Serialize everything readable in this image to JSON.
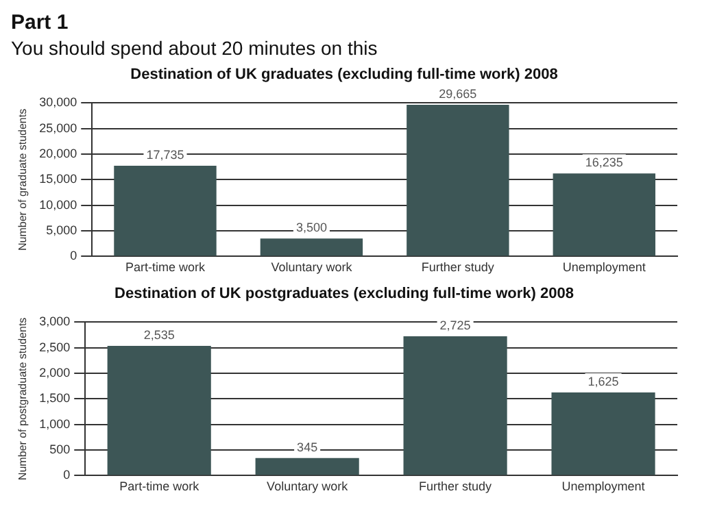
{
  "chart_data": [
    {
      "type": "bar",
      "title": "Destination of UK graduates (excluding full-time work) 2008",
      "annotations": [
        "Part 1",
        "You should spend about 20 minutes on this"
      ],
      "ylabel": "Number of graduate students",
      "categories": [
        "Part-time work",
        "Voluntary work",
        "Further study",
        "Unemployment"
      ],
      "values": [
        17735,
        3500,
        29665,
        16235
      ],
      "value_labels": [
        "17,735",
        "3,500",
        "29,665",
        "16,235"
      ],
      "color": "#3d5656",
      "ylim": [
        0,
        30000
      ],
      "yticks": [
        {
          "value": 0,
          "label": "0"
        },
        {
          "value": 5000,
          "label": "5,000"
        },
        {
          "value": 10000,
          "label": "10,000"
        },
        {
          "value": 15000,
          "label": "15,000"
        },
        {
          "value": 20000,
          "label": "20,000"
        },
        {
          "value": 25000,
          "label": "25,000"
        },
        {
          "value": 30000,
          "label": "30,000"
        }
      ],
      "grid": "y"
    },
    {
      "type": "bar",
      "title": "Destination of UK postgraduates (excluding full-time work) 2008",
      "ylabel": "Number of postgraduate students",
      "categories": [
        "Part-time work",
        "Voluntary work",
        "Further study",
        "Unemployment"
      ],
      "values": [
        2535,
        345,
        2725,
        1625
      ],
      "value_labels": [
        "2,535",
        "345",
        "2,725",
        "1,625"
      ],
      "color": "#3d5656",
      "ylim": [
        0,
        3000
      ],
      "yticks": [
        {
          "value": 0,
          "label": "0"
        },
        {
          "value": 500,
          "label": "500"
        },
        {
          "value": 1000,
          "label": "1,000"
        },
        {
          "value": 1500,
          "label": "1,500"
        },
        {
          "value": 2000,
          "label": "2,000"
        },
        {
          "value": 2500,
          "label": "2,500"
        },
        {
          "value": 3000,
          "label": "3,000"
        }
      ],
      "grid": "y"
    }
  ]
}
